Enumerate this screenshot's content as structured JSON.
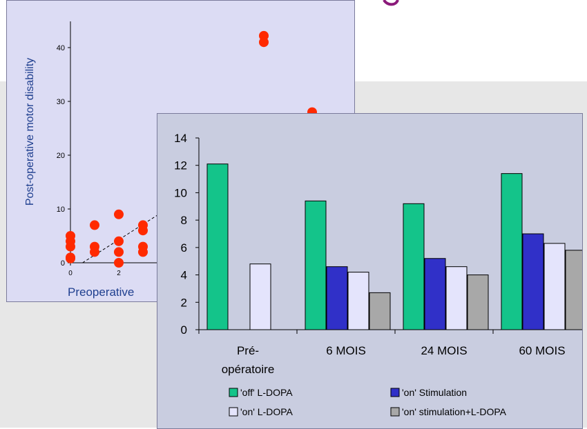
{
  "colors": {
    "page_top": "#ffffff",
    "page_band": "#e7e7e7",
    "title_fragment": "#8b1a7a",
    "scatter_bg": "#dcdcf4",
    "scatter_axis_text": "#1f3f8f",
    "scatter_points": "#ff2a00",
    "bar_bg": "#c9cde0",
    "off_ldopa": "#14c48a",
    "on_stimulation": "#3030c8",
    "on_ldopa": "#e4e4fc",
    "on_stim_ldopa": "#a8a8a8"
  },
  "chart_data": [
    {
      "type": "scatter",
      "ylabel": "Post-operative motor disability",
      "xlabel": "Preoperative",
      "x_ticks": [
        "0",
        "2"
      ],
      "y_ticks": [
        "0",
        "10",
        "20",
        "30",
        "40"
      ],
      "ylim": [
        0,
        45
      ],
      "points": [
        {
          "x": 0,
          "y": 5
        },
        {
          "x": 0,
          "y": 4
        },
        {
          "x": 0,
          "y": 3
        },
        {
          "x": 0,
          "y": 1
        },
        {
          "x": 0,
          "y": 0.8
        },
        {
          "x": 1,
          "y": 7
        },
        {
          "x": 1,
          "y": 3
        },
        {
          "x": 1,
          "y": 2
        },
        {
          "x": 2,
          "y": 9
        },
        {
          "x": 2,
          "y": 4
        },
        {
          "x": 2,
          "y": 2
        },
        {
          "x": 2,
          "y": 0
        },
        {
          "x": 3,
          "y": 7
        },
        {
          "x": 3,
          "y": 6
        },
        {
          "x": 3,
          "y": 3
        },
        {
          "x": 3,
          "y": 2
        },
        {
          "x": 8,
          "y": 42.2
        },
        {
          "x": 8,
          "y": 41
        },
        {
          "x": 10,
          "y": 28
        }
      ],
      "reference_line": "dashed"
    },
    {
      "type": "bar",
      "categories": [
        [
          "Pré-",
          "opératoire"
        ],
        [
          "6 MOIS"
        ],
        [
          "24 MOIS"
        ],
        [
          "60 MOIS"
        ]
      ],
      "ylim": [
        0,
        14
      ],
      "y_ticks": [
        "0",
        "2",
        "4",
        "6",
        "8",
        "10",
        "12",
        "14"
      ],
      "series": [
        {
          "name": "'off' L-DOPA",
          "values": [
            12.1,
            9.4,
            9.2,
            11.4
          ]
        },
        {
          "name": "'on' Stimulation",
          "values": [
            null,
            4.6,
            5.2,
            7.0
          ]
        },
        {
          "name": "'on' L-DOPA",
          "values": [
            4.8,
            4.2,
            4.6,
            6.3
          ]
        },
        {
          "name": "'on' stimulation+L-DOPA",
          "values": [
            null,
            2.7,
            4.0,
            5.8
          ]
        }
      ],
      "legend_placement": "bottom",
      "grid": false
    }
  ]
}
